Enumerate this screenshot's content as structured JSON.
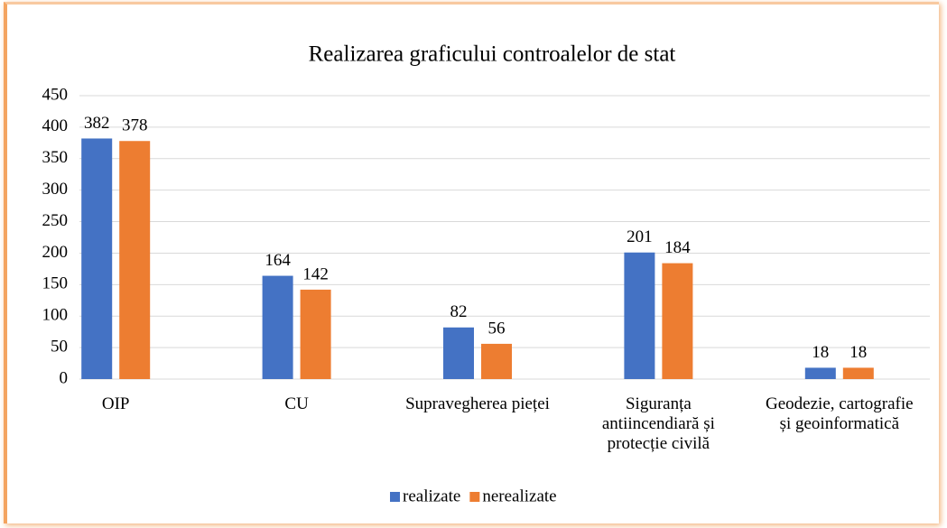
{
  "chart_data": {
    "type": "bar",
    "title": "Realizarea graficului controalelor de stat",
    "categories": [
      "OIP",
      "CU",
      "Supravegherea pieței",
      "Siguranța antiincendiară și protecție civilă",
      "Geodezie, cartografie și geoinformatică"
    ],
    "series": [
      {
        "name": "realizate",
        "color": "#4472c4",
        "values": [
          382,
          164,
          82,
          201,
          18
        ]
      },
      {
        "name": "nerealizate",
        "color": "#ed7d31",
        "values": [
          378,
          142,
          56,
          184,
          18
        ]
      }
    ],
    "ylim": [
      0,
      450
    ],
    "yticks": [
      0,
      50,
      100,
      150,
      200,
      250,
      300,
      350,
      400,
      450
    ],
    "grid": true,
    "legend": "bottom"
  }
}
